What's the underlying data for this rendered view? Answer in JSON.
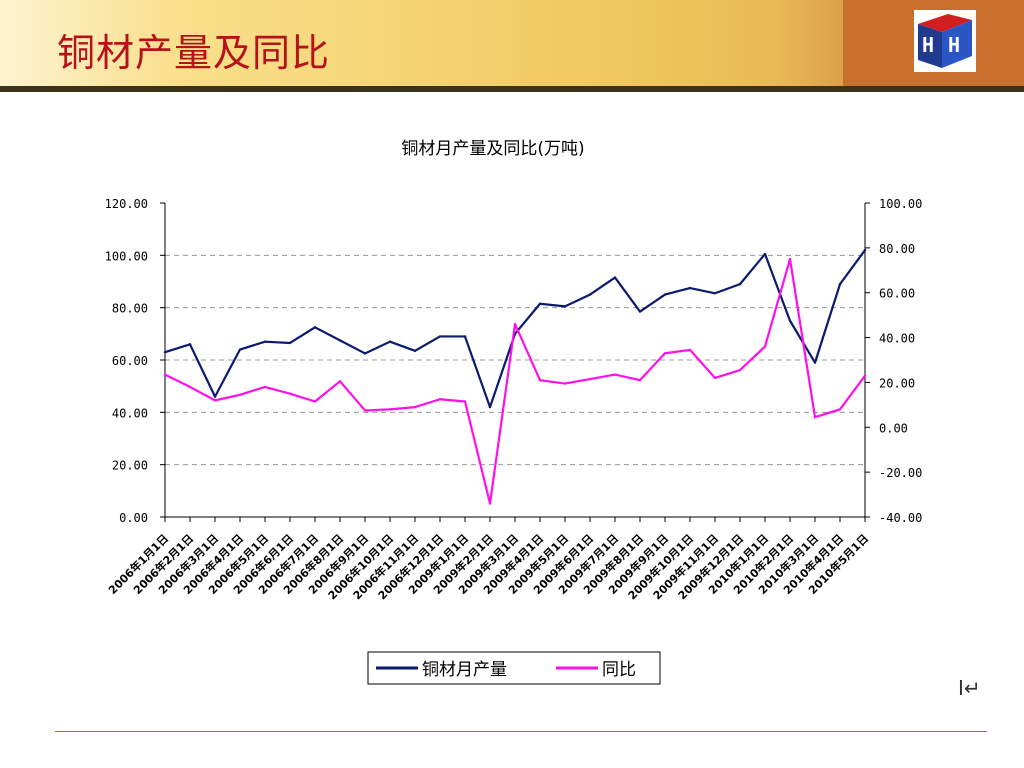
{
  "slide": {
    "title": "铜材产量及同比",
    "cursor_glyph": "I↵"
  },
  "colors": {
    "production": "#0a1a6e",
    "yoy": "#ff10e8",
    "title": "#b5121b"
  },
  "chart_data": {
    "type": "line",
    "title": "铜材月产量及同比(万吨)",
    "categories": [
      "2006年1月1日",
      "2006年2月1日",
      "2006年3月1日",
      "2006年4月1日",
      "2006年5月1日",
      "2006年6月1日",
      "2006年7月1日",
      "2006年8月1日",
      "2006年9月1日",
      "2006年10月1日",
      "2006年11月1日",
      "2006年12月1日",
      "2009年1月1日",
      "2009年2月1日",
      "2009年3月1日",
      "2009年4月1日",
      "2009年5月1日",
      "2009年6月1日",
      "2009年7月1日",
      "2009年8月1日",
      "2009年9月1日",
      "2009年10月1日",
      "2009年11月1日",
      "2009年12月1日",
      "2010年1月1日",
      "2010年2月1日",
      "2010年3月1日",
      "2010年4月1日",
      "2010年5月1日"
    ],
    "y_left": {
      "ylim": [
        0,
        120
      ],
      "ticks": [
        "0.00",
        "20.00",
        "40.00",
        "60.00",
        "80.00",
        "100.00",
        "120.00"
      ]
    },
    "y_right": {
      "ylim": [
        -40,
        100
      ],
      "ticks": [
        "-40.00",
        "-20.00",
        "0.00",
        "20.00",
        "40.00",
        "60.00",
        "80.00",
        "100.00"
      ]
    },
    "grid": true,
    "legend_position": "bottom",
    "series": [
      {
        "name": "铜材月产量",
        "axis": "left",
        "color": "#0a1a6e",
        "values": [
          63,
          66,
          46,
          64,
          67,
          66.5,
          72.5,
          67.5,
          62.5,
          67,
          63.5,
          69,
          69,
          42,
          70,
          81.5,
          80.5,
          85,
          91.5,
          78.5,
          85,
          87.5,
          85.5,
          89,
          100.5,
          75,
          59,
          89,
          102
        ]
      },
      {
        "name": "同比",
        "axis": "right",
        "color": "#ff10e8",
        "values": [
          23.5,
          18,
          12,
          14.5,
          18,
          15,
          11.5,
          20.5,
          7.5,
          8,
          9,
          12.5,
          11.5,
          -34,
          46,
          21,
          19.5,
          21.5,
          23.5,
          21,
          33,
          34.5,
          22,
          25.5,
          36,
          75,
          4.5,
          8,
          23
        ]
      }
    ]
  }
}
